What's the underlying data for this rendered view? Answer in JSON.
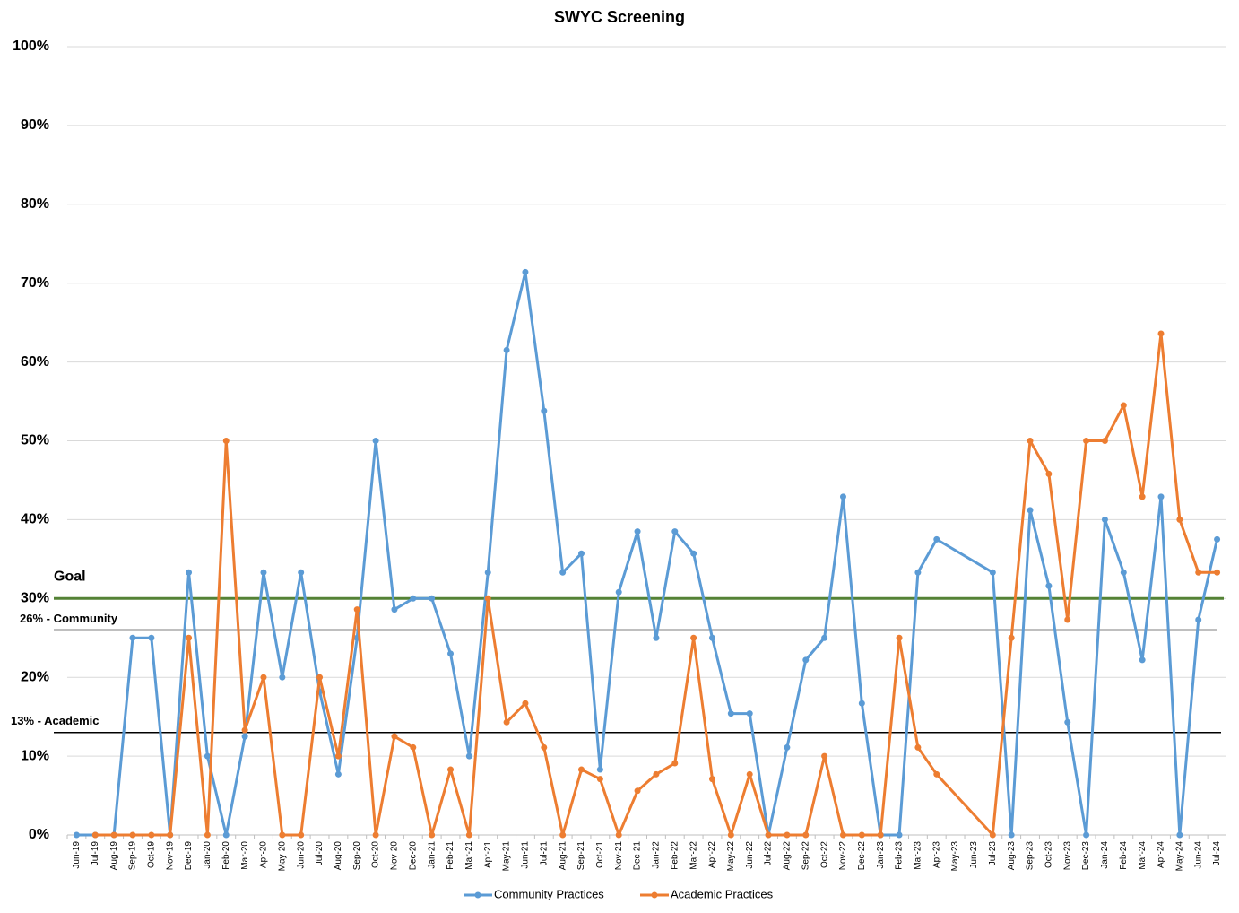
{
  "chart_data": {
    "type": "line",
    "title": "SWYC Screening",
    "categories": [
      "Jun-19",
      "Jul-19",
      "Aug-19",
      "Sep-19",
      "Oct-19",
      "Nov-19",
      "Dec-19",
      "Jan-20",
      "Feb-20",
      "Mar-20",
      "Apr-20",
      "May-20",
      "Jun-20",
      "Jul-20",
      "Aug-20",
      "Sep-20",
      "Oct-20",
      "Nov-20",
      "Dec-20",
      "Jan-21",
      "Feb-21",
      "Mar-21",
      "Apr-21",
      "May-21",
      "Jun-21",
      "Jul-21",
      "Aug-21",
      "Sep-21",
      "Oct-21",
      "Nov-21",
      "Dec-21",
      "Jan-22",
      "Feb-22",
      "Mar-22",
      "Apr-22",
      "May-22",
      "Jun-22",
      "Jul-22",
      "Aug-22",
      "Sep-22",
      "Oct-22",
      "Nov-22",
      "Dec-22",
      "Jan-23",
      "Feb-23",
      "Mar-23",
      "Apr-23",
      "May-23",
      "Jun-23",
      "Jul-23",
      "Aug-23",
      "Sep-23",
      "Oct-23",
      "Nov-23",
      "Dec-23",
      "Jan-24",
      "Feb-24",
      "Mar-24",
      "Apr-24",
      "May-24",
      "Jun-24",
      "Jul-24"
    ],
    "series": [
      {
        "name": "Community Practices",
        "color": "#5b9bd5",
        "values": [
          0,
          0,
          0,
          25,
          25,
          0,
          33.3,
          10,
          0,
          12.5,
          33.3,
          20,
          33.3,
          18.2,
          7.7,
          25,
          50,
          28.6,
          30,
          30,
          23,
          10,
          33.3,
          61.5,
          71.4,
          53.8,
          33.3,
          35.7,
          8.3,
          30.8,
          38.5,
          25,
          38.5,
          35.7,
          25,
          15.4,
          15.4,
          0,
          11.1,
          22.2,
          25,
          42.9,
          16.7,
          0,
          0,
          33.3,
          37.5,
          null,
          null,
          33.3,
          0,
          41.2,
          31.6,
          14.3,
          0,
          40,
          33.3,
          22.2,
          42.9,
          0,
          27.3,
          37.5
        ]
      },
      {
        "name": "Academic Practices",
        "color": "#ed7d31",
        "values": [
          null,
          0,
          0,
          0,
          0,
          0,
          25,
          0,
          50,
          13.3,
          20,
          0,
          0,
          20,
          10,
          28.6,
          0,
          12.5,
          11.1,
          0,
          8.3,
          0,
          30,
          14.3,
          16.7,
          11.1,
          0,
          8.3,
          7.1,
          0,
          5.6,
          7.7,
          9.1,
          25,
          7.1,
          0,
          7.7,
          0,
          0,
          0,
          10,
          0,
          0,
          0,
          25,
          11.1,
          7.7,
          null,
          null,
          0,
          25,
          50,
          45.8,
          27.3,
          50,
          50,
          54.5,
          42.9,
          63.6,
          40,
          33.3,
          33.3
        ]
      }
    ],
    "connect_gaps": true,
    "reference_lines": [
      {
        "label": "Goal",
        "value": 30,
        "color": "#548235"
      },
      {
        "label": "26% - Community",
        "value": 26,
        "color": "#000000"
      },
      {
        "label": "13% - Academic",
        "value": 13,
        "color": "#000000"
      }
    ],
    "ylim": [
      0,
      100
    ],
    "yticks": [
      {
        "value": 0,
        "label": "0%"
      },
      {
        "value": 10,
        "label": "10%"
      },
      {
        "value": 20,
        "label": "20%"
      },
      {
        "value": 30,
        "label": "30%"
      },
      {
        "value": 40,
        "label": "40%"
      },
      {
        "value": 50,
        "label": "50%"
      },
      {
        "value": 60,
        "label": "60%"
      },
      {
        "value": 70,
        "label": "70%"
      },
      {
        "value": 80,
        "label": "80%"
      },
      {
        "value": 90,
        "label": "90%"
      },
      {
        "value": 100,
        "label": "100%"
      }
    ],
    "grid": true,
    "legend": "bottom"
  }
}
